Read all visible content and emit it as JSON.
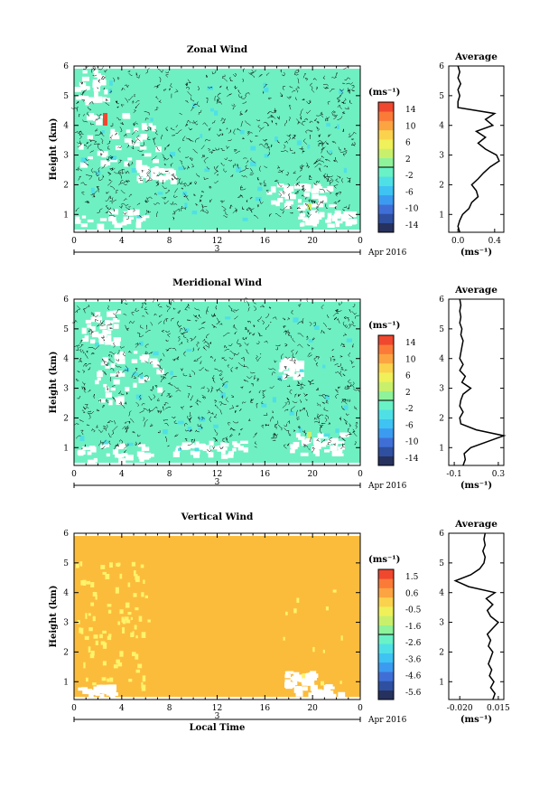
{
  "chart_data": [
    {
      "type": "heatmap",
      "title": "Zonal Wind",
      "ylabel": "Height (km)",
      "x_ticks": [
        "0",
        "4",
        "8",
        "12",
        "16",
        "20",
        "0"
      ],
      "y_ticks": [
        "1",
        "2",
        "3",
        "4",
        "5",
        "6"
      ],
      "xlim": [
        0,
        24
      ],
      "ylim": [
        0.4,
        6
      ],
      "date_marker": "3",
      "date_label": "Apr 2016",
      "colorbar": {
        "unit": "(ms⁻¹)",
        "ticks": [
          "14",
          "10",
          "6",
          "2",
          "-2",
          "-6",
          "-10",
          "-14"
        ]
      },
      "dominant_value": 0,
      "average_profile": {
        "title": "Average",
        "xlabel": "(ms⁻¹)",
        "x_ticks": [
          "0.0",
          "0.4"
        ],
        "xlim": [
          -0.1,
          0.5
        ],
        "y": [
          0.4,
          0.6,
          0.8,
          1.0,
          1.2,
          1.4,
          1.6,
          1.8,
          2.0,
          2.2,
          2.4,
          2.6,
          2.8,
          3.0,
          3.2,
          3.4,
          3.6,
          3.8,
          4.0,
          4.2,
          4.4,
          4.6,
          4.8,
          5.0,
          5.2,
          5.4,
          5.6,
          5.8,
          6.0
        ],
        "x": [
          0.02,
          0.0,
          0.02,
          0.05,
          0.12,
          0.15,
          0.22,
          0.2,
          0.15,
          0.22,
          0.28,
          0.35,
          0.45,
          0.42,
          0.3,
          0.22,
          0.3,
          0.2,
          0.38,
          0.3,
          0.4,
          0.0,
          0.0,
          0.02,
          0.0,
          0.03,
          0.0,
          0.02,
          0.0
        ]
      }
    },
    {
      "type": "heatmap",
      "title": "Meridional Wind",
      "ylabel": "Height (km)",
      "x_ticks": [
        "0",
        "4",
        "8",
        "12",
        "16",
        "20",
        "0"
      ],
      "y_ticks": [
        "1",
        "2",
        "3",
        "4",
        "5",
        "6"
      ],
      "xlim": [
        0,
        24
      ],
      "ylim": [
        0.4,
        6
      ],
      "date_marker": "3",
      "date_label": "Apr 2016",
      "colorbar": {
        "unit": "(ms⁻¹)",
        "ticks": [
          "14",
          "10",
          "6",
          "2",
          "-2",
          "-6",
          "-10",
          "-14"
        ]
      },
      "dominant_value": 0,
      "average_profile": {
        "title": "Average",
        "xlabel": "(ms⁻¹)",
        "x_ticks": [
          "-0.1",
          "0.3"
        ],
        "xlim": [
          -0.15,
          0.35
        ],
        "y": [
          0.4,
          0.6,
          0.8,
          1.0,
          1.2,
          1.4,
          1.6,
          1.8,
          2.0,
          2.2,
          2.4,
          2.6,
          2.8,
          3.0,
          3.2,
          3.4,
          3.6,
          3.8,
          4.0,
          4.2,
          4.4,
          4.6,
          4.8,
          5.0,
          5.2,
          5.4,
          5.6,
          5.8,
          6.0
        ],
        "x": [
          -0.02,
          0.0,
          -0.01,
          0.05,
          0.2,
          0.35,
          0.1,
          -0.04,
          -0.05,
          -0.02,
          -0.05,
          -0.04,
          -0.02,
          0.05,
          -0.03,
          0.0,
          -0.05,
          -0.02,
          -0.05,
          -0.04,
          -0.03,
          -0.02,
          -0.04,
          -0.03,
          -0.05,
          -0.04,
          -0.05,
          -0.04,
          -0.05
        ]
      }
    },
    {
      "type": "heatmap",
      "title": "Vertical Wind",
      "ylabel": "Height (km)",
      "xlabel": "Local Time",
      "x_ticks": [
        "0",
        "4",
        "8",
        "12",
        "16",
        "20",
        "0"
      ],
      "y_ticks": [
        "1",
        "2",
        "3",
        "4",
        "5",
        "6"
      ],
      "xlim": [
        0,
        24
      ],
      "ylim": [
        0.4,
        6
      ],
      "date_marker": "3",
      "date_label": "Apr 2016",
      "colorbar": {
        "unit": "(ms⁻¹)",
        "ticks": [
          "1.5",
          "0.6",
          "-0.5",
          "-1.6",
          "-2.6",
          "-3.6",
          "-4.6",
          "-5.6"
        ]
      },
      "dominant_value": 0.1,
      "average_profile": {
        "title": "Average",
        "xlabel": "(ms⁻¹)",
        "x_ticks": [
          "-0.020",
          "0.015"
        ],
        "xlim": [
          -0.03,
          0.02
        ],
        "y": [
          0.4,
          0.6,
          0.8,
          1.0,
          1.2,
          1.4,
          1.6,
          1.8,
          2.0,
          2.2,
          2.4,
          2.6,
          2.8,
          3.0,
          3.2,
          3.4,
          3.6,
          3.8,
          4.0,
          4.2,
          4.4,
          4.6,
          4.8,
          5.0,
          5.2,
          5.4,
          5.6,
          5.8,
          6.0
        ],
        "x": [
          0.01,
          0.012,
          0.008,
          0.011,
          0.007,
          0.009,
          0.006,
          0.008,
          0.01,
          0.006,
          0.008,
          0.005,
          0.01,
          0.015,
          0.008,
          0.005,
          0.01,
          0.004,
          0.012,
          -0.012,
          -0.024,
          -0.01,
          -0.002,
          0.002,
          0.003,
          0.001,
          0.003,
          0.002,
          0.003
        ]
      }
    }
  ],
  "colormap": [
    "#26315e",
    "#2f4fa0",
    "#3f6fd6",
    "#3b9bf0",
    "#3ec3f2",
    "#4fe0e6",
    "#69f2c6",
    "#8ef39a",
    "#c9f06c",
    "#eff05a",
    "#fbd24d",
    "#fca441",
    "#fb7a38",
    "#f0472f"
  ]
}
